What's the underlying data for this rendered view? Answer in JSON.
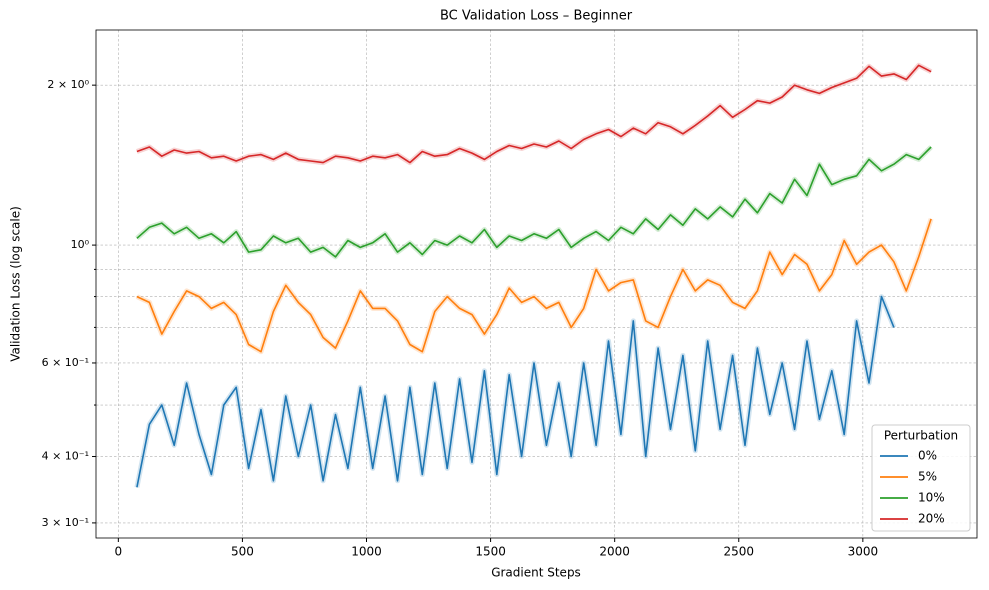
{
  "chart_data": {
    "type": "line",
    "title": "BC Validation Loss – Beginner",
    "xlabel": "Gradient Steps",
    "ylabel": "Validation Loss (log scale)",
    "log_y": true,
    "grid": true,
    "legend_title": "Perturbation",
    "legend_loc": "lower right",
    "xlim": [
      -90,
      3460
    ],
    "xticks": [
      0,
      500,
      1000,
      1500,
      2000,
      2500,
      3000
    ],
    "ylim": [
      0.281,
      2.54
    ],
    "yticks": [
      {
        "value": 0.3,
        "label": "3 × 10⁻¹"
      },
      {
        "value": 0.4,
        "label": "4 × 10⁻¹"
      },
      {
        "value": 0.6,
        "label": "6 × 10⁻¹"
      },
      {
        "value": 1,
        "label": "10⁰"
      },
      {
        "value": 2,
        "label": "2 × 10⁰"
      }
    ],
    "yminorticks": [
      0.5,
      0.7,
      0.8,
      0.9
    ],
    "x": [
      75,
      125,
      175,
      225,
      275,
      325,
      375,
      425,
      475,
      525,
      575,
      625,
      675,
      725,
      775,
      825,
      875,
      925,
      975,
      1025,
      1075,
      1125,
      1175,
      1225,
      1275,
      1325,
      1375,
      1425,
      1475,
      1525,
      1575,
      1625,
      1675,
      1725,
      1775,
      1825,
      1875,
      1925,
      1975,
      2025,
      2075,
      2125,
      2175,
      2225,
      2275,
      2325,
      2375,
      2425,
      2475,
      2525,
      2575,
      2625,
      2675,
      2725,
      2775,
      2825,
      2875,
      2925,
      2975,
      3025,
      3075,
      3125,
      3175,
      3225,
      3275
    ],
    "series": [
      {
        "name": "0%",
        "color": "#1f77b4",
        "values": [
          0.35,
          0.46,
          0.5,
          0.42,
          0.55,
          0.44,
          0.37,
          0.5,
          0.54,
          0.38,
          0.49,
          0.36,
          0.52,
          0.4,
          0.5,
          0.36,
          0.48,
          0.38,
          0.54,
          0.38,
          0.52,
          0.36,
          0.54,
          0.37,
          0.55,
          0.38,
          0.56,
          0.39,
          0.58,
          0.37,
          0.57,
          0.4,
          0.6,
          0.42,
          0.55,
          0.4,
          0.6,
          0.42,
          0.66,
          0.44,
          0.72,
          0.4,
          0.64,
          0.45,
          0.62,
          0.41,
          0.66,
          0.45,
          0.62,
          0.42,
          0.64,
          0.48,
          0.6,
          0.45,
          0.66,
          0.47,
          0.58,
          0.44,
          0.72,
          0.55,
          0.8,
          0.7,
          null,
          null,
          null
        ]
      },
      {
        "name": "5%",
        "color": "#ff7f0e",
        "values": [
          0.8,
          0.78,
          0.68,
          0.75,
          0.82,
          0.8,
          0.76,
          0.78,
          0.74,
          0.65,
          0.63,
          0.75,
          0.84,
          0.78,
          0.74,
          0.67,
          0.64,
          0.72,
          0.82,
          0.76,
          0.76,
          0.72,
          0.65,
          0.63,
          0.75,
          0.8,
          0.76,
          0.74,
          0.68,
          0.74,
          0.83,
          0.78,
          0.8,
          0.76,
          0.78,
          0.7,
          0.76,
          0.9,
          0.82,
          0.85,
          0.86,
          0.72,
          0.7,
          0.8,
          0.9,
          0.82,
          0.86,
          0.84,
          0.78,
          0.76,
          0.82,
          0.97,
          0.88,
          0.96,
          0.92,
          0.82,
          0.88,
          1.02,
          0.92,
          0.97,
          1.0,
          0.93,
          0.82,
          0.95,
          1.12
        ]
      },
      {
        "name": "10%",
        "color": "#2ca02c",
        "values": [
          1.03,
          1.08,
          1.1,
          1.05,
          1.08,
          1.03,
          1.05,
          1.01,
          1.06,
          0.97,
          0.98,
          1.04,
          1.01,
          1.03,
          0.97,
          0.99,
          0.95,
          1.02,
          0.99,
          1.01,
          1.05,
          0.97,
          1.01,
          0.96,
          1.02,
          1.0,
          1.04,
          1.01,
          1.07,
          0.99,
          1.04,
          1.02,
          1.05,
          1.03,
          1.07,
          0.99,
          1.03,
          1.06,
          1.02,
          1.08,
          1.05,
          1.12,
          1.07,
          1.14,
          1.09,
          1.17,
          1.12,
          1.18,
          1.13,
          1.22,
          1.15,
          1.25,
          1.2,
          1.33,
          1.24,
          1.42,
          1.3,
          1.33,
          1.35,
          1.45,
          1.38,
          1.42,
          1.48,
          1.45,
          1.53
        ]
      },
      {
        "name": "20%",
        "color": "#d62728",
        "values": [
          1.5,
          1.53,
          1.47,
          1.51,
          1.49,
          1.5,
          1.46,
          1.47,
          1.44,
          1.47,
          1.48,
          1.45,
          1.49,
          1.45,
          1.44,
          1.43,
          1.47,
          1.46,
          1.44,
          1.47,
          1.46,
          1.48,
          1.43,
          1.5,
          1.47,
          1.48,
          1.52,
          1.49,
          1.45,
          1.5,
          1.54,
          1.52,
          1.55,
          1.53,
          1.57,
          1.52,
          1.58,
          1.62,
          1.65,
          1.6,
          1.66,
          1.62,
          1.7,
          1.67,
          1.62,
          1.68,
          1.75,
          1.83,
          1.74,
          1.8,
          1.87,
          1.85,
          1.9,
          2.0,
          1.96,
          1.93,
          1.98,
          2.02,
          2.06,
          2.17,
          2.08,
          2.1,
          2.05,
          2.18,
          2.12
        ]
      }
    ]
  }
}
